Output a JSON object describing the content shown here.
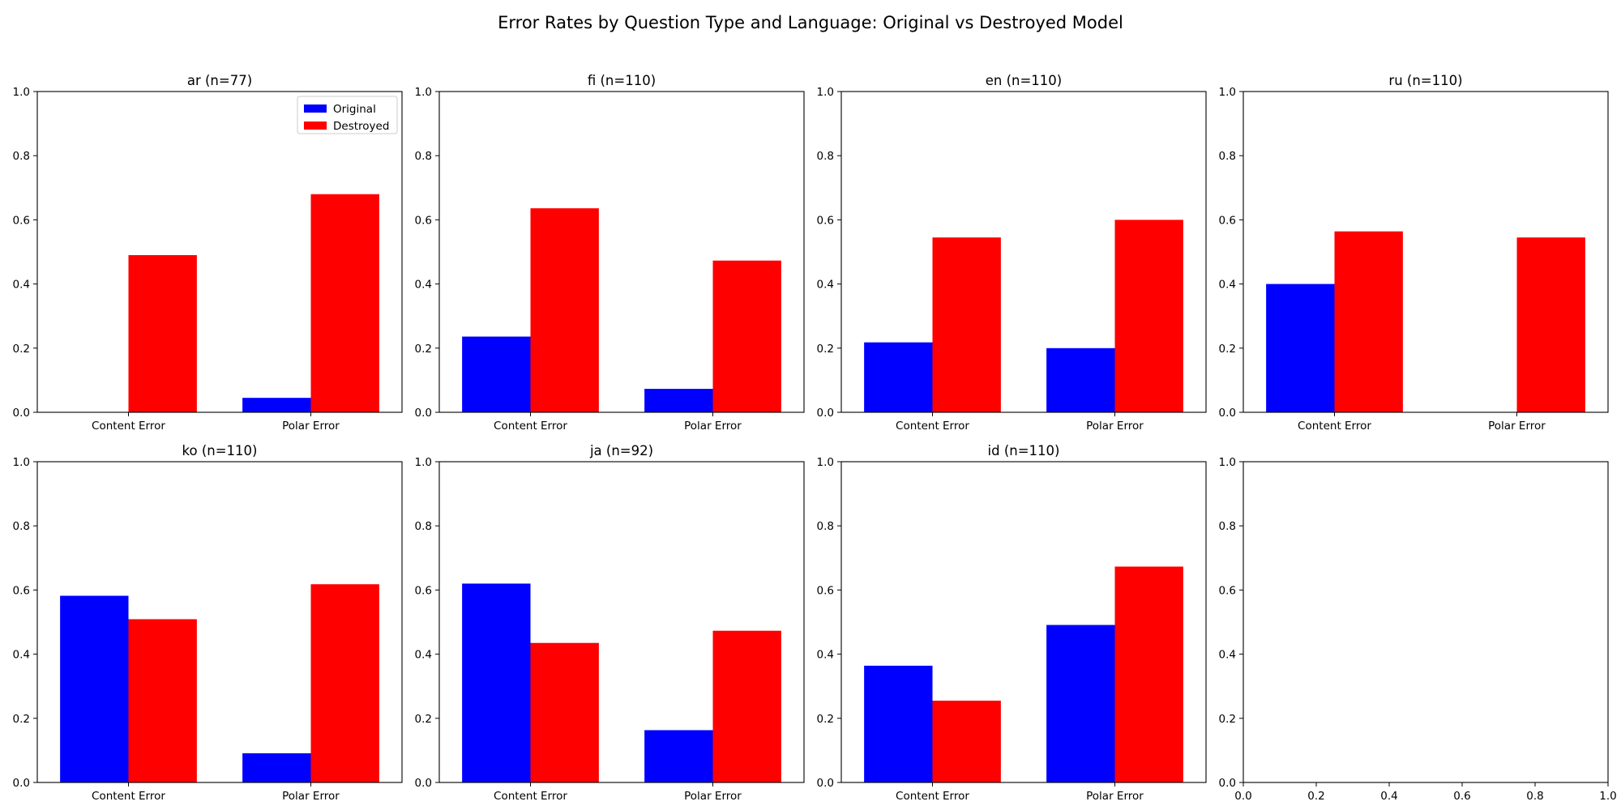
{
  "chart_data": {
    "type": "bar",
    "title": "Error Rates by Question Type and Language: Original vs Destroyed Model",
    "categories": [
      "Content Error",
      "Polar Error"
    ],
    "ylim": [
      0,
      1.0
    ],
    "yticks": [
      "0.0",
      "0.2",
      "0.4",
      "0.6",
      "0.8",
      "1.0"
    ],
    "legend": {
      "placement": "upper-right",
      "panel": 0,
      "entries": [
        "Original",
        "Destroyed"
      ]
    },
    "colors": {
      "Original": "#0000ff",
      "Destroyed": "#ff0000"
    },
    "panels": [
      {
        "title": "ar (n=77)",
        "series": [
          {
            "name": "Original",
            "values": [
              0.0,
              0.045
            ]
          },
          {
            "name": "Destroyed",
            "values": [
              0.49,
              0.68
            ]
          }
        ]
      },
      {
        "title": "fi (n=110)",
        "series": [
          {
            "name": "Original",
            "values": [
              0.236,
              0.073
            ]
          },
          {
            "name": "Destroyed",
            "values": [
              0.636,
              0.473
            ]
          }
        ]
      },
      {
        "title": "en (n=110)",
        "series": [
          {
            "name": "Original",
            "values": [
              0.218,
              0.2
            ]
          },
          {
            "name": "Destroyed",
            "values": [
              0.545,
              0.6
            ]
          }
        ]
      },
      {
        "title": "ru (n=110)",
        "series": [
          {
            "name": "Original",
            "values": [
              0.4,
              0.0
            ]
          },
          {
            "name": "Destroyed",
            "values": [
              0.564,
              0.545
            ]
          }
        ]
      },
      {
        "title": "ko (n=110)",
        "series": [
          {
            "name": "Original",
            "values": [
              0.582,
              0.091
            ]
          },
          {
            "name": "Destroyed",
            "values": [
              0.509,
              0.618
            ]
          }
        ]
      },
      {
        "title": "ja (n=92)",
        "series": [
          {
            "name": "Original",
            "values": [
              0.62,
              0.163
            ]
          },
          {
            "name": "Destroyed",
            "values": [
              0.435,
              0.473
            ]
          }
        ]
      },
      {
        "title": "id (n=110)",
        "series": [
          {
            "name": "Original",
            "values": [
              0.364,
              0.491
            ]
          },
          {
            "name": "Destroyed",
            "values": [
              0.255,
              0.673
            ]
          }
        ]
      },
      {
        "title": "",
        "empty": true,
        "xticks": [
          "0.0",
          "0.2",
          "0.4",
          "0.6",
          "0.8",
          "1.0"
        ]
      }
    ]
  }
}
